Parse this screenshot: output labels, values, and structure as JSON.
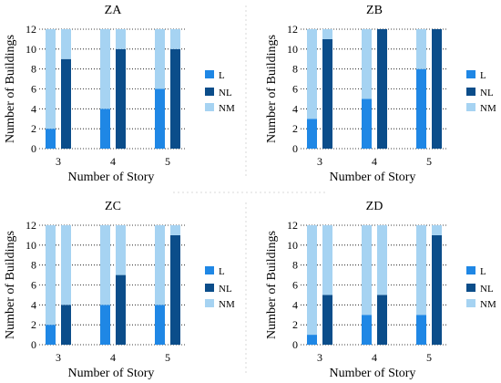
{
  "colors": {
    "L": "#1f87e5",
    "NL": "#0b4d8a",
    "NM": "#a6d3f2",
    "grid": "#000000",
    "separator": "#d9d9d9"
  },
  "chart_data": [
    {
      "type": "bar",
      "stacked": true,
      "title": "ZA",
      "xlabel": "Number of Story",
      "ylabel": "Number of Buildings",
      "ylim": [
        0,
        12
      ],
      "yticks": [
        0,
        2,
        4,
        6,
        8,
        10,
        12
      ],
      "grid": "horizontal dotted",
      "legend": [
        "L",
        "NL",
        "NM"
      ],
      "legend_position": "right",
      "groups": [
        {
          "story": "3",
          "left_bar": {
            "L": 2,
            "NM": 10
          },
          "right_bar": {
            "NL": 9,
            "NM": 3
          }
        },
        {
          "story": "4",
          "left_bar": {
            "L": 4,
            "NM": 8
          },
          "right_bar": {
            "NL": 10,
            "NM": 2
          }
        },
        {
          "story": "5",
          "left_bar": {
            "L": 6,
            "NM": 6
          },
          "right_bar": {
            "NL": 10,
            "NM": 2
          }
        }
      ]
    },
    {
      "type": "bar",
      "stacked": true,
      "title": "ZB",
      "xlabel": "Number of Story",
      "ylabel": "Number of Buildings",
      "ylim": [
        0,
        12
      ],
      "yticks": [
        0,
        2,
        4,
        6,
        8,
        10,
        12
      ],
      "grid": "horizontal dotted",
      "legend": [
        "L",
        "NL",
        "NM"
      ],
      "legend_position": "right",
      "groups": [
        {
          "story": "3",
          "left_bar": {
            "L": 3,
            "NM": 9
          },
          "right_bar": {
            "NL": 11,
            "NM": 1
          }
        },
        {
          "story": "4",
          "left_bar": {
            "L": 5,
            "NM": 7
          },
          "right_bar": {
            "NL": 12,
            "NM": 0
          }
        },
        {
          "story": "5",
          "left_bar": {
            "L": 8,
            "NM": 4
          },
          "right_bar": {
            "NL": 12,
            "NM": 0
          }
        }
      ]
    },
    {
      "type": "bar",
      "stacked": true,
      "title": "ZC",
      "xlabel": "Number of Story",
      "ylabel": "Number of Buildings",
      "ylim": [
        0,
        12
      ],
      "yticks": [
        0,
        2,
        4,
        6,
        8,
        10,
        12
      ],
      "grid": "horizontal dotted",
      "legend": [
        "L",
        "NL",
        "NM"
      ],
      "legend_position": "right",
      "groups": [
        {
          "story": "3",
          "left_bar": {
            "L": 2,
            "NM": 10
          },
          "right_bar": {
            "NL": 4,
            "NM": 8
          }
        },
        {
          "story": "4",
          "left_bar": {
            "L": 4,
            "NM": 8
          },
          "right_bar": {
            "NL": 7,
            "NM": 5
          }
        },
        {
          "story": "5",
          "left_bar": {
            "L": 4,
            "NM": 8
          },
          "right_bar": {
            "NL": 11,
            "NM": 1
          }
        }
      ]
    },
    {
      "type": "bar",
      "stacked": true,
      "title": "ZD",
      "xlabel": "Number of Story",
      "ylabel": "Number of Buildings",
      "ylim": [
        0,
        12
      ],
      "yticks": [
        0,
        2,
        4,
        6,
        8,
        10,
        12
      ],
      "grid": "horizontal dotted",
      "legend": [
        "L",
        "NL",
        "NM"
      ],
      "legend_position": "right",
      "groups": [
        {
          "story": "3",
          "left_bar": {
            "L": 1,
            "NM": 11
          },
          "right_bar": {
            "NL": 5,
            "NM": 7
          }
        },
        {
          "story": "4",
          "left_bar": {
            "L": 3,
            "NM": 9
          },
          "right_bar": {
            "NL": 5,
            "NM": 7
          }
        },
        {
          "story": "5",
          "left_bar": {
            "L": 3,
            "NM": 9
          },
          "right_bar": {
            "NL": 11,
            "NM": 1
          }
        }
      ]
    }
  ]
}
